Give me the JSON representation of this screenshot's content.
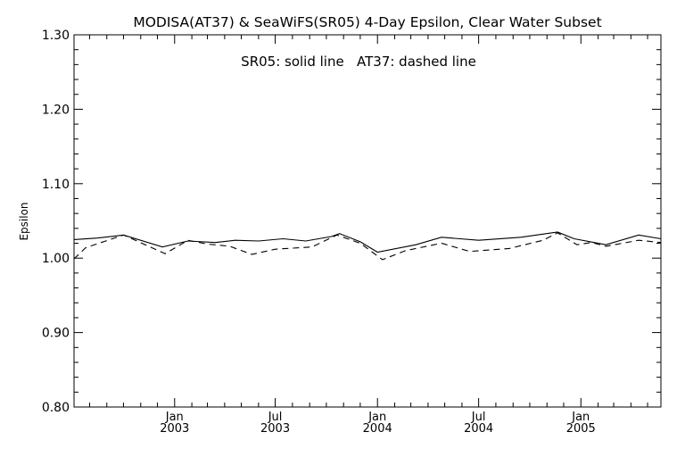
{
  "chart_data": {
    "type": "line",
    "title": "MODISA(AT37) & SeaWiFS(SR05) 4-Day Epsilon, Clear Water Subset",
    "annotation": "SR05: solid line   AT37: dashed line",
    "xlabel": "",
    "ylabel": "Epsilon",
    "xlim": [
      "2002-07-04",
      "2005-05-25"
    ],
    "ylim": [
      0.8,
      1.3
    ],
    "yticks": [
      "0.80",
      "0.90",
      "1.00",
      "1.10",
      "1.20",
      "1.30"
    ],
    "xticks": [
      {
        "date": "2003-01-01",
        "month": "Jan",
        "year": "2003"
      },
      {
        "date": "2003-07-01",
        "month": "Jul",
        "year": "2003"
      },
      {
        "date": "2004-01-01",
        "month": "Jan",
        "year": "2004"
      },
      {
        "date": "2004-07-01",
        "month": "Jul",
        "year": "2004"
      },
      {
        "date": "2005-01-01",
        "month": "Jan",
        "year": "2005"
      }
    ],
    "grid": false,
    "legend": "none",
    "series": [
      {
        "name": "SR05",
        "style": "solid",
        "points": [
          [
            "2002-07-04",
            1.025
          ],
          [
            "2002-08-15",
            1.027
          ],
          [
            "2002-10-01",
            1.031
          ],
          [
            "2002-12-10",
            1.015
          ],
          [
            "2003-01-25",
            1.023
          ],
          [
            "2003-03-15",
            1.021
          ],
          [
            "2003-04-20",
            1.024
          ],
          [
            "2003-06-01",
            1.023
          ],
          [
            "2003-07-15",
            1.026
          ],
          [
            "2003-08-25",
            1.023
          ],
          [
            "2003-10-10",
            1.029
          ],
          [
            "2003-10-25",
            1.033
          ],
          [
            "2003-12-01",
            1.022
          ],
          [
            "2004-01-01",
            1.008
          ],
          [
            "2004-03-10",
            1.018
          ],
          [
            "2004-04-25",
            1.028
          ],
          [
            "2004-07-01",
            1.024
          ],
          [
            "2004-09-15",
            1.028
          ],
          [
            "2004-11-20",
            1.035
          ],
          [
            "2004-12-20",
            1.026
          ],
          [
            "2005-01-25",
            1.021
          ],
          [
            "2005-02-15",
            1.018
          ],
          [
            "2005-04-15",
            1.031
          ],
          [
            "2005-05-25",
            1.026
          ]
        ]
      },
      {
        "name": "AT37",
        "style": "dashed",
        "points": [
          [
            "2002-07-04",
            0.999
          ],
          [
            "2002-07-25",
            1.014
          ],
          [
            "2002-10-01",
            1.031
          ],
          [
            "2002-12-15",
            1.006
          ],
          [
            "2003-01-25",
            1.024
          ],
          [
            "2003-03-01",
            1.019
          ],
          [
            "2003-04-10",
            1.016
          ],
          [
            "2003-05-20",
            1.005
          ],
          [
            "2003-07-01",
            1.012
          ],
          [
            "2003-09-05",
            1.015
          ],
          [
            "2003-10-20",
            1.031
          ],
          [
            "2003-12-01",
            1.02
          ],
          [
            "2004-01-10",
            0.998
          ],
          [
            "2004-02-20",
            1.01
          ],
          [
            "2004-04-25",
            1.02
          ],
          [
            "2004-06-15",
            1.009
          ],
          [
            "2004-08-25",
            1.013
          ],
          [
            "2004-10-25",
            1.024
          ],
          [
            "2004-11-20",
            1.034
          ],
          [
            "2004-12-25",
            1.018
          ],
          [
            "2005-01-20",
            1.021
          ],
          [
            "2005-02-15",
            1.016
          ],
          [
            "2005-04-15",
            1.024
          ],
          [
            "2005-05-25",
            1.021
          ]
        ]
      }
    ]
  }
}
